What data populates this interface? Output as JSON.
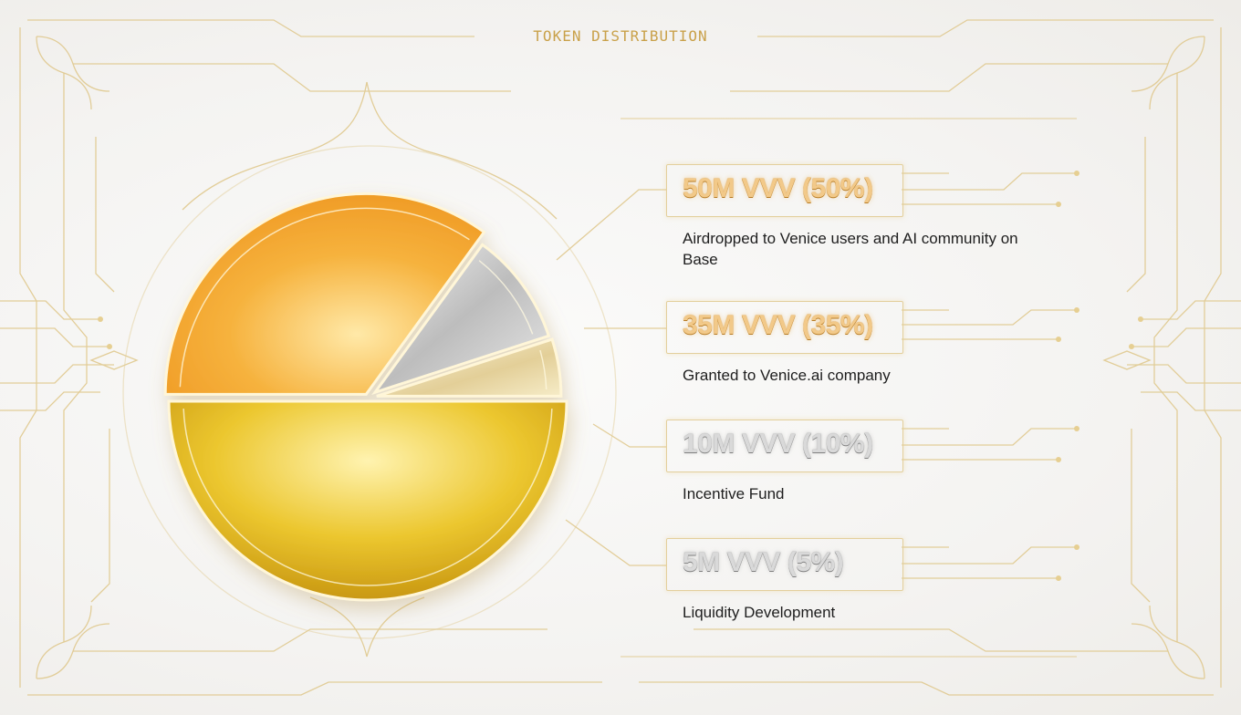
{
  "chart_data": {
    "type": "pie",
    "title": "TOKEN DISTRIBUTION",
    "slices": [
      {
        "label": "50M VVV (50%)",
        "description": "Airdropped to Venice users and AI community on Base",
        "value": 50,
        "color": "#e9c22c"
      },
      {
        "label": "35M VVV (35%)",
        "description": "Granted to Venice.ai company",
        "value": 35,
        "color": "#f3a530"
      },
      {
        "label": "10M VVV (10%)",
        "description": "Incentive Fund",
        "value": 10,
        "color": "#c4c4c4"
      },
      {
        "label": "5M VVV (5%)",
        "description": "Liquidity Development",
        "value": 5,
        "color": "#e6d6a4"
      }
    ]
  }
}
